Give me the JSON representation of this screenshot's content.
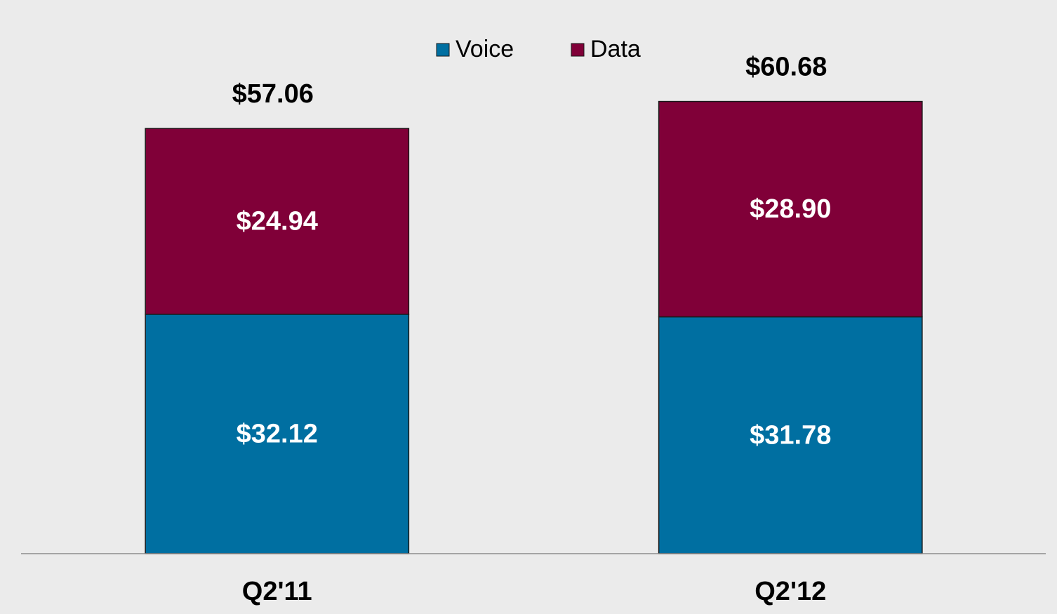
{
  "chart_data": {
    "type": "stacked_bar",
    "categories": [
      "Q2'11",
      "Q2'12"
    ],
    "series": [
      {
        "name": "Voice",
        "color": "#006fa1",
        "values": [
          32.12,
          31.78
        ],
        "value_labels": [
          "$32.12",
          "$31.78"
        ]
      },
      {
        "name": "Data",
        "color": "#800038",
        "values": [
          24.94,
          28.9
        ],
        "value_labels": [
          "$24.94",
          "$28.90"
        ]
      }
    ],
    "totals": {
      "values": [
        57.06,
        60.68
      ],
      "value_labels": [
        "$57.06",
        "$60.68"
      ]
    },
    "ylim": [
      0,
      70
    ],
    "legend": "top"
  }
}
